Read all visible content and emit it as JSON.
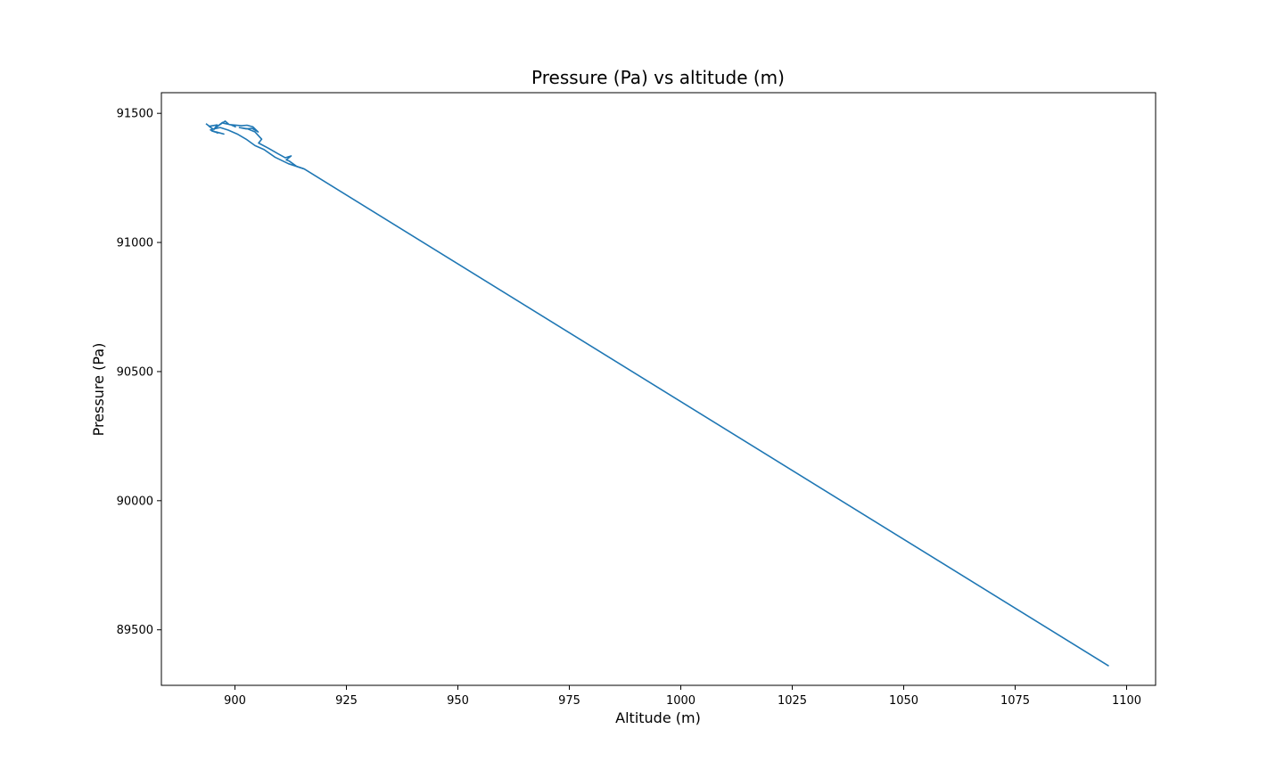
{
  "chart_data": {
    "type": "line",
    "title": "Pressure (Pa) vs altitude (m)",
    "xlabel": "Altitude (m)",
    "ylabel": "Pressure (Pa)",
    "xlim": [
      883.5,
      1106.5
    ],
    "ylim": [
      89285,
      91580
    ],
    "xticks": [
      900,
      925,
      950,
      975,
      1000,
      1025,
      1050,
      1075,
      1100
    ],
    "yticks": [
      89500,
      90000,
      90500,
      91000,
      91500
    ],
    "grid": false,
    "series": [
      {
        "color": "#1f77b4",
        "x": [
          893.5,
          895.0,
          894.2,
          896.0,
          895.3,
          897.2,
          896.1,
          897.8,
          898.6,
          897.4,
          899.2,
          900.1,
          899.0,
          901.5,
          902.7,
          904.0,
          905.2,
          903.8,
          902.5,
          901.0,
          902.8,
          904.5,
          906.0,
          905.3,
          907.5,
          909.5,
          911.3,
          912.6,
          911.5,
          912.2,
          913.8,
          915.5,
          1096.0
        ],
        "y": [
          91460,
          91440,
          91450,
          91455,
          91438,
          91465,
          91450,
          91470,
          91458,
          91462,
          91455,
          91448,
          91456,
          91452,
          91454,
          91448,
          91428,
          91442,
          91440,
          91445,
          91440,
          91428,
          91400,
          91385,
          91365,
          91345,
          91328,
          91335,
          91320,
          91315,
          91295,
          91285,
          89360
        ]
      },
      {
        "color": "#1f77b4",
        "x": [
          915.5,
          912.0,
          909.0,
          906.5,
          904.5,
          902.5,
          900.5,
          898.5,
          896.7,
          895.3,
          894.5,
          896.0,
          894.8,
          897.5,
          895.8,
          896.2
        ],
        "y": [
          91285,
          91305,
          91330,
          91360,
          91375,
          91400,
          91420,
          91435,
          91445,
          91440,
          91436,
          91425,
          91432,
          91420,
          91428,
          91422
        ]
      }
    ]
  }
}
